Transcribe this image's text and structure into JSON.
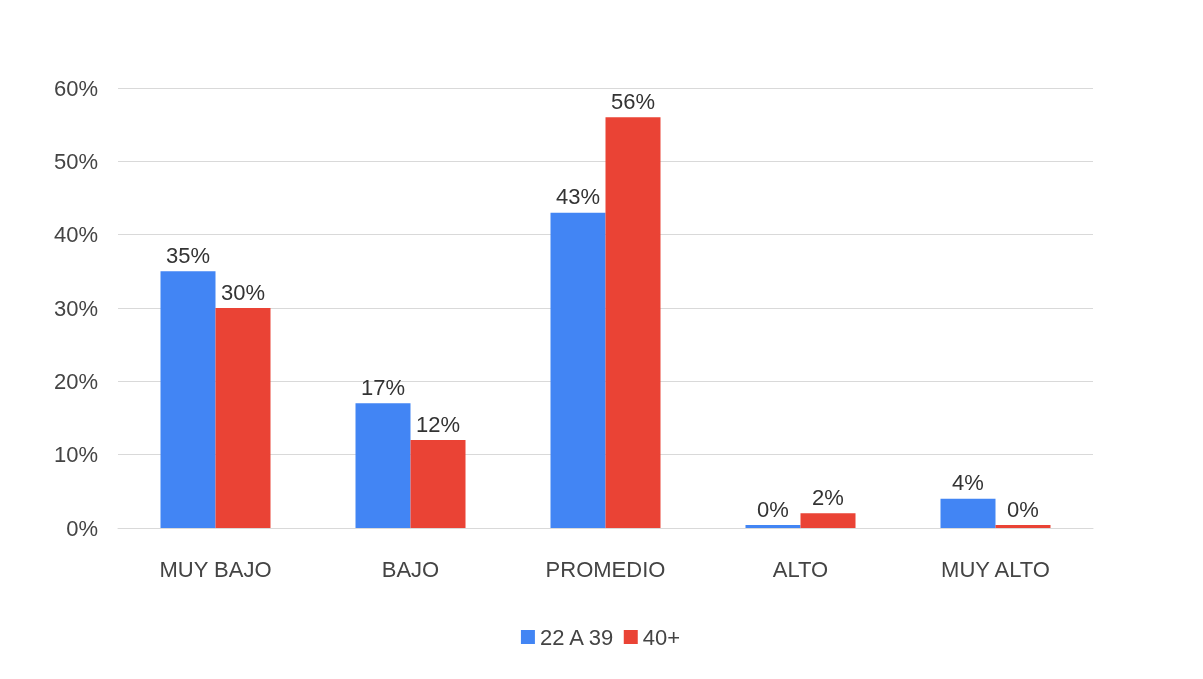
{
  "chart_data": {
    "type": "bar",
    "categories": [
      "MUY BAJO",
      "BAJO",
      "PROMEDIO",
      "ALTO",
      "MUY ALTO"
    ],
    "series": [
      {
        "name": "22 A 39",
        "color": "#4285f4",
        "values": [
          35,
          17,
          43,
          0,
          4
        ],
        "value_labels": [
          "35%",
          "17%",
          "43%",
          "0%",
          "4%"
        ]
      },
      {
        "name": "40+",
        "color": "#ea4335",
        "values": [
          30,
          12,
          56,
          2,
          0
        ],
        "value_labels": [
          "30%",
          "12%",
          "56%",
          "2%",
          "0%"
        ]
      }
    ],
    "ylim": [
      0,
      60
    ],
    "yticks": [
      {
        "value": 0,
        "label": "0%"
      },
      {
        "value": 10,
        "label": "10%"
      },
      {
        "value": 20,
        "label": "20%"
      },
      {
        "value": 30,
        "label": "30%"
      },
      {
        "value": 40,
        "label": "40%"
      },
      {
        "value": 50,
        "label": "50%"
      },
      {
        "value": 60,
        "label": "60%"
      }
    ],
    "grid": "y",
    "legend": "bottom"
  }
}
